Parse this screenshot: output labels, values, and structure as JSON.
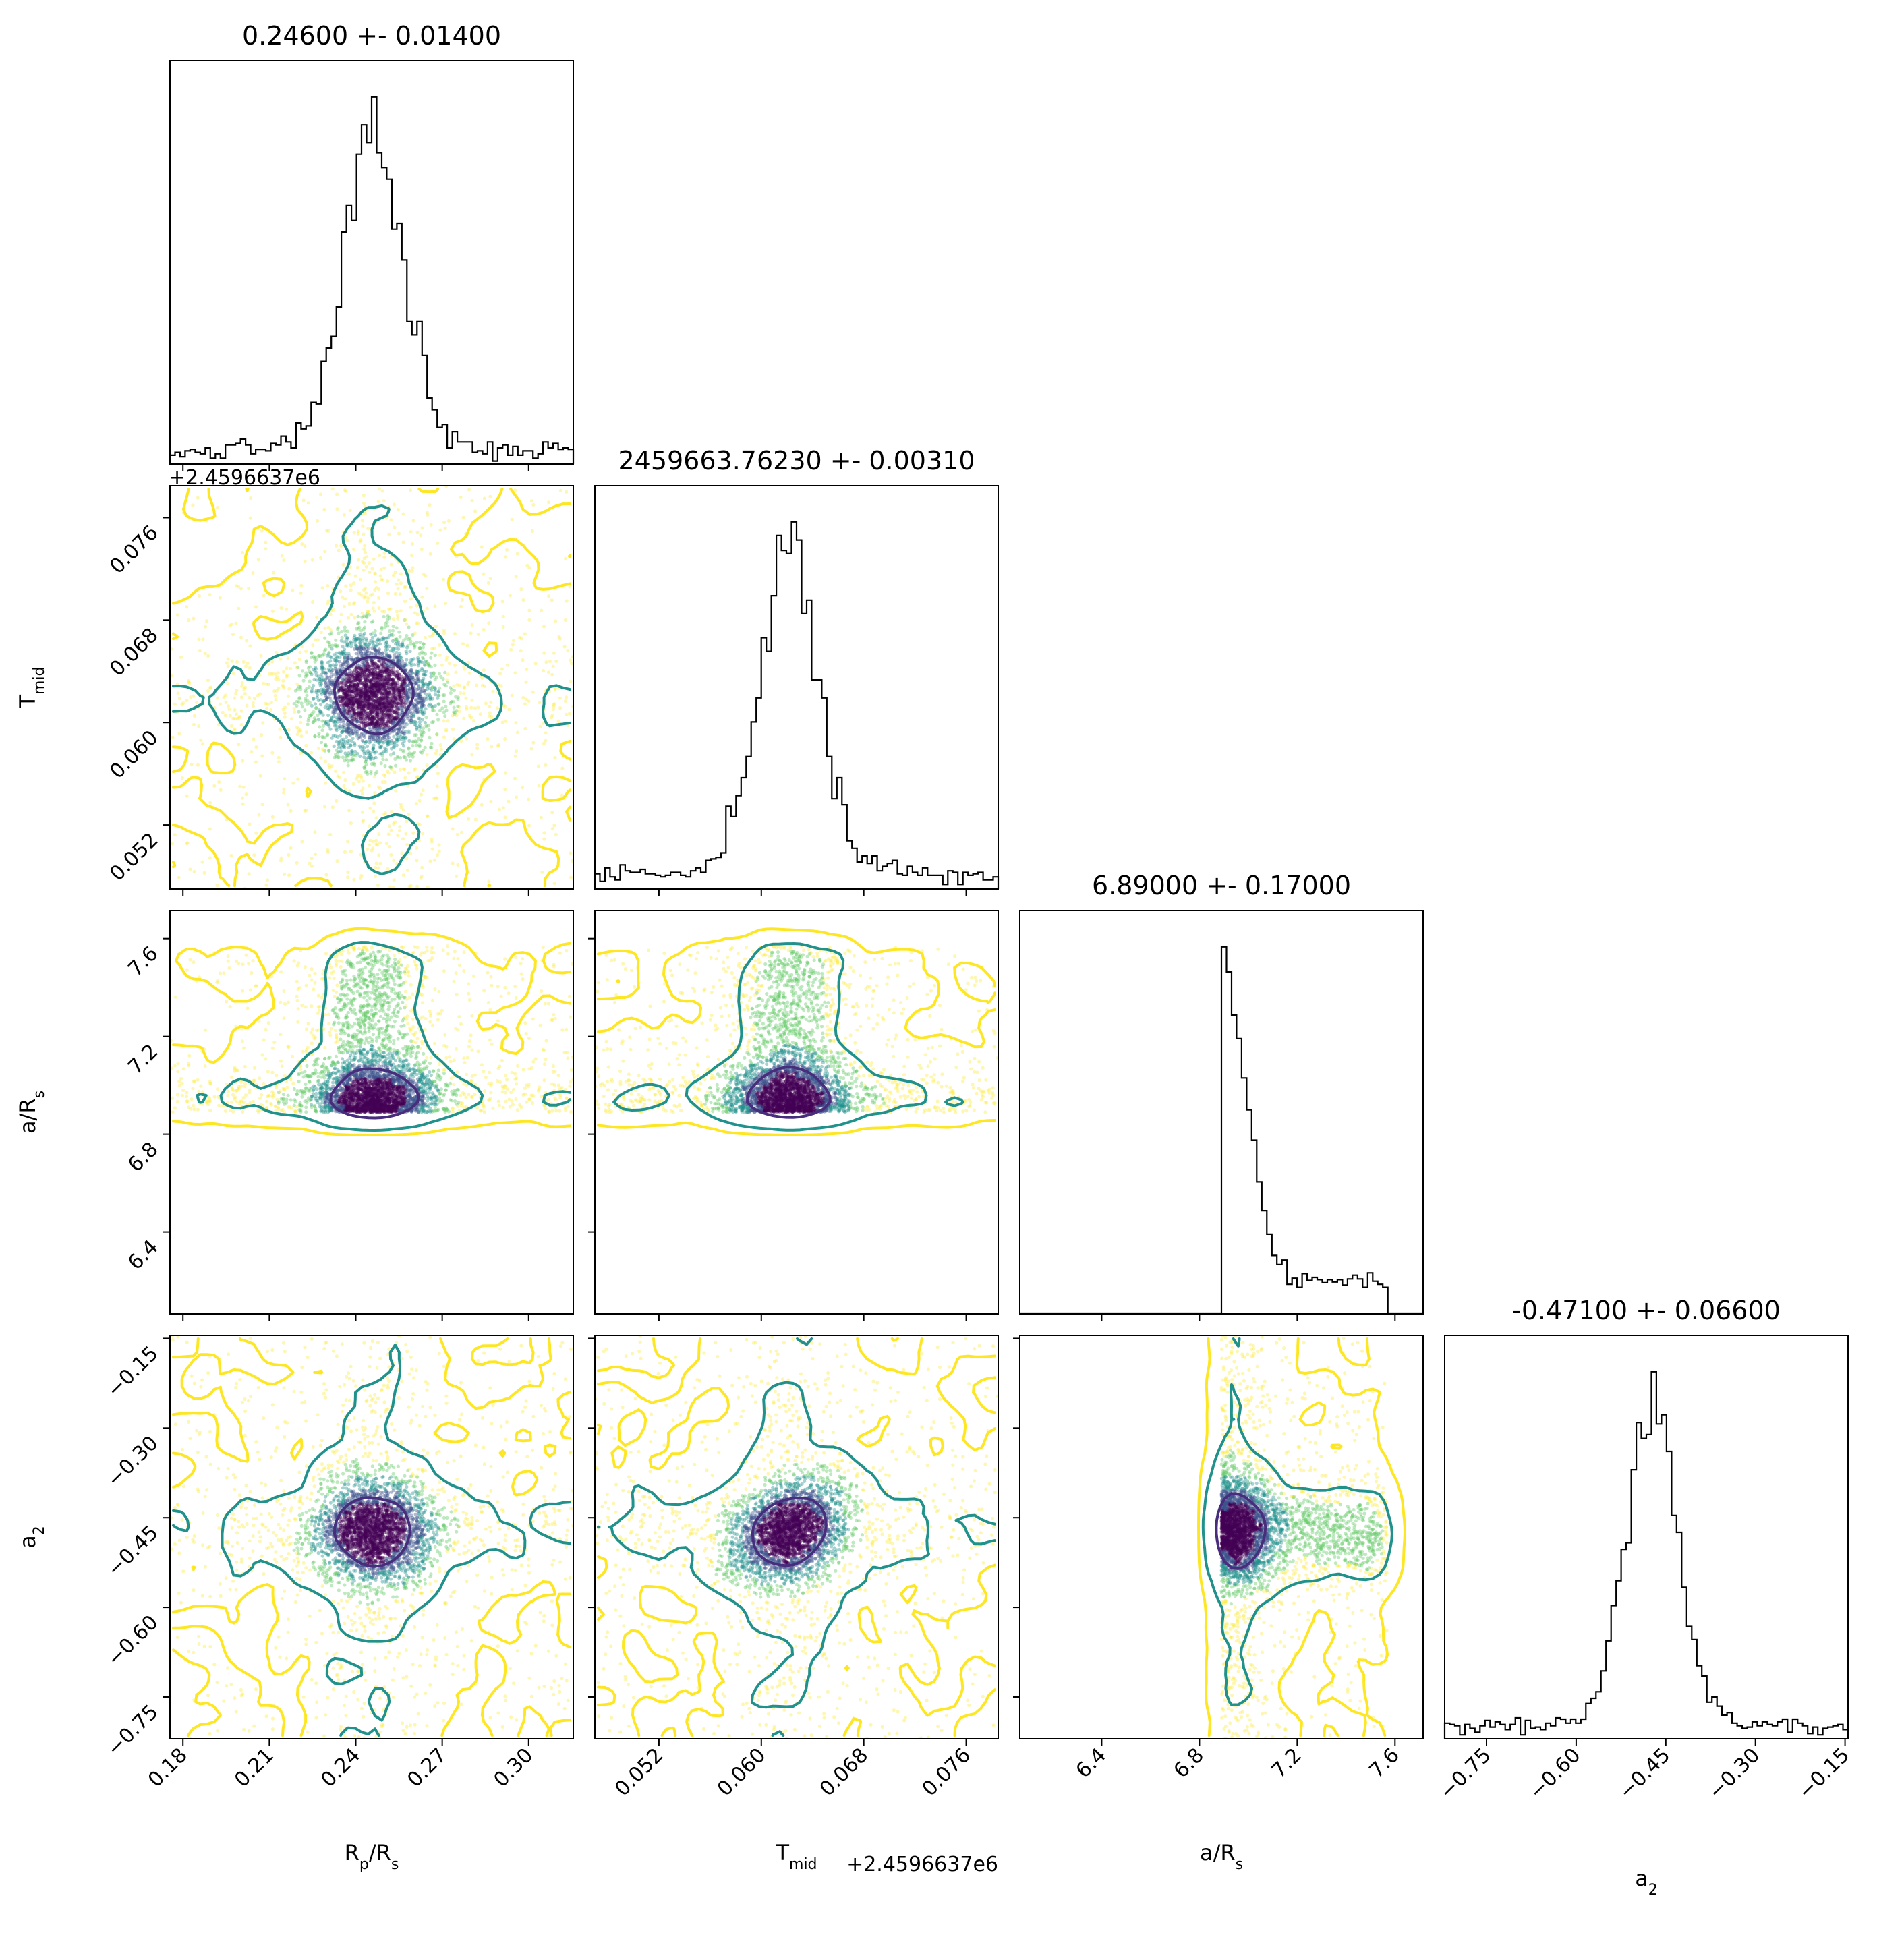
{
  "chart_data": {
    "type": "corner",
    "parameters": [
      {
        "key": "rprs",
        "label": "R",
        "label_sub": "p",
        "label_mid": "/R",
        "label_sub2": "s",
        "title": "0.24600 +- 0.01400",
        "range": [
          0.1755,
          0.3155
        ],
        "ticks": [
          0.18,
          0.21,
          0.24,
          0.27,
          0.3
        ],
        "tick_labels": [
          "0.18",
          "0.21",
          "0.24",
          "0.27",
          "0.30"
        ],
        "offset_text": "",
        "distribution": {
          "mean": 0.2463,
          "sigma": 0.0105,
          "tail_lo": 0.1755,
          "tail_hi": 0.3155,
          "tail_frac": 0.2
        }
      },
      {
        "key": "tmid",
        "label": "T",
        "label_sub": "mid",
        "label_mid": "",
        "label_sub2": "",
        "title": "2459663.76230 +- 0.00310",
        "range": [
          0.047,
          0.0785
        ],
        "ticks": [
          0.052,
          0.06,
          0.068,
          0.076
        ],
        "tick_labels": [
          "0.052",
          "0.060",
          "0.068",
          "0.076"
        ],
        "offset_text": "+2.4596637e6",
        "distribution": {
          "mean": 0.0622,
          "sigma": 0.0023,
          "tail_lo": 0.047,
          "tail_hi": 0.0785,
          "tail_frac": 0.2
        }
      },
      {
        "key": "ars",
        "label": "a/R",
        "label_sub": "s",
        "label_mid": "",
        "label_sub2": "",
        "title": "6.89000 +- 0.17000",
        "range": [
          6.065,
          7.715
        ],
        "ticks": [
          6.4,
          6.8,
          7.2,
          7.6
        ],
        "tick_labels": [
          "6.4",
          "6.8",
          "7.2",
          "7.6"
        ],
        "offset_text": "",
        "distribution": {
          "min": 6.89,
          "max": 7.57,
          "scale": 0.1,
          "tail_frac": 0.35
        }
      },
      {
        "key": "a2",
        "label": "a",
        "label_sub": "2",
        "label_mid": "",
        "label_sub2": "",
        "title": "-0.47100 +- 0.06600",
        "range": [
          -0.82,
          -0.145
        ],
        "ticks": [
          -0.75,
          -0.6,
          -0.45,
          -0.3,
          -0.15
        ],
        "tick_labels": [
          "−0.75",
          "−0.60",
          "−0.45",
          "−0.30",
          "−0.15"
        ],
        "offset_text": "",
        "distribution": {
          "mean": -0.475,
          "sigma": 0.045,
          "tail_lo": -0.82,
          "tail_hi": -0.145,
          "tail_frac": 0.2
        }
      }
    ],
    "samples": 4000,
    "histogram_bins": 80,
    "grid": false,
    "colors": {
      "contour_inner": "#472d7b",
      "contour_middle": "#21918c",
      "contour_outer": "#fde725",
      "points": [
        "#440154",
        "#3b528b",
        "#21918c",
        "#5ec962",
        "#fde725"
      ],
      "histogram": "#000000"
    }
  }
}
